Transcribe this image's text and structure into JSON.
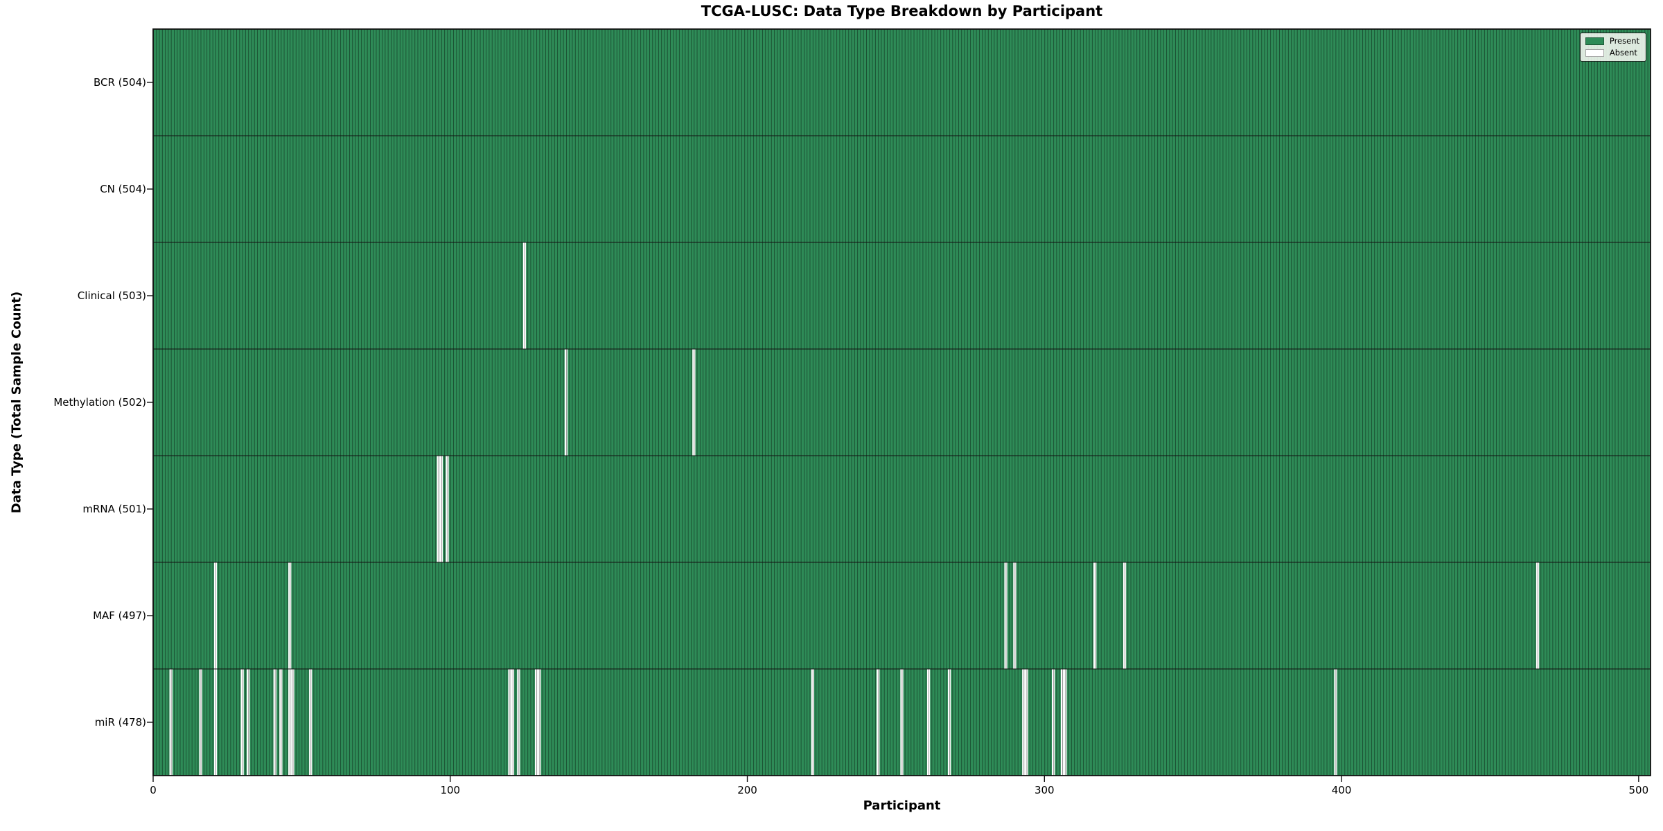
{
  "chart_data": {
    "type": "heatmap",
    "title": "TCGA-LUSC: Data Type Breakdown by Participant",
    "xlabel": "Participant",
    "ylabel": "Data Type (Total Sample Count)",
    "n_participants": 504,
    "xlim": [
      0,
      504
    ],
    "x_ticks": [
      0,
      100,
      200,
      300,
      400,
      500
    ],
    "grid": false,
    "legend_position": "upper right",
    "legend_items": [
      {
        "label": "Present",
        "key": "present"
      },
      {
        "label": "Absent",
        "key": "absent"
      }
    ],
    "colors": {
      "present": "#2e8b57",
      "absent": "#ffffff",
      "cell_edge": "rgba(0,0,0,0.5)",
      "row_boundary": "#111111",
      "frame": "#111111"
    },
    "rows": [
      {
        "label": "BCR (504)",
        "data_type": "BCR",
        "total_samples": 504,
        "absent_participants": []
      },
      {
        "label": "CN (504)",
        "data_type": "CN",
        "total_samples": 504,
        "absent_participants": []
      },
      {
        "label": "Clinical (503)",
        "data_type": "Clinical",
        "total_samples": 503,
        "absent_participants": [
          125
        ]
      },
      {
        "label": "Methylation (502)",
        "data_type": "Methylation",
        "total_samples": 502,
        "absent_participants": [
          139,
          182
        ]
      },
      {
        "label": "mRNA (501)",
        "data_type": "mRNA",
        "total_samples": 501,
        "absent_participants": [
          96,
          97,
          99
        ]
      },
      {
        "label": "MAF (497)",
        "data_type": "MAF",
        "total_samples": 497,
        "absent_participants": [
          21,
          46,
          287,
          290,
          317,
          327,
          466
        ]
      },
      {
        "label": "miR (478)",
        "data_type": "miR",
        "total_samples": 478,
        "absent_participants": [
          6,
          16,
          21,
          30,
          32,
          41,
          43,
          46,
          47,
          53,
          120,
          121,
          123,
          129,
          130,
          222,
          244,
          252,
          261,
          268,
          293,
          294,
          303,
          306,
          307,
          398
        ]
      }
    ]
  }
}
